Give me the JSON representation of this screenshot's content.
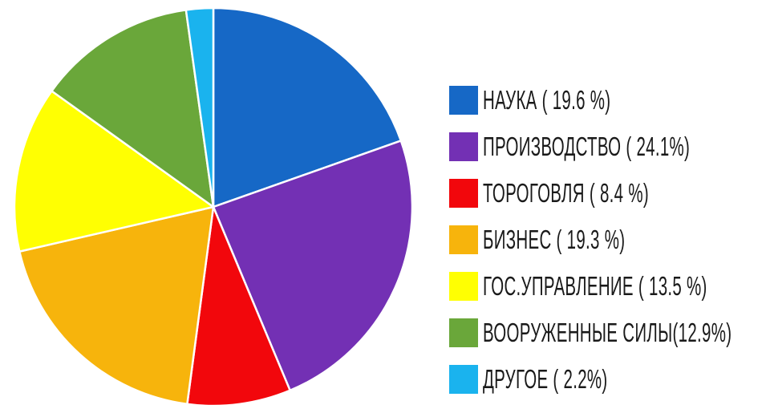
{
  "chart_data": {
    "type": "pie",
    "title": "",
    "start_angle_deg": 0,
    "direction": "clockwise",
    "slices": [
      {
        "label": "НАУКА ( 19.6 %)",
        "value": 19.6,
        "color": "#1668c6"
      },
      {
        "label": "ПРОИЗВОДСТВО ( 24.1%)",
        "value": 24.1,
        "color": "#7330b4"
      },
      {
        "label": "ТОРОГОВЛЯ (  8.4  %)",
        "value": 8.4,
        "color": "#f2070c"
      },
      {
        "label": "БИЗНЕС ( 19.3  %)",
        "value": 19.3,
        "color": "#f7b40c"
      },
      {
        "label": "ГОС.УПРАВЛЕНИЕ (  13.5  %)",
        "value": 13.5,
        "color": "#ffff02"
      },
      {
        "label": "ВООРУЖЕННЫЕ СИЛЫ(12.9%)",
        "value": 12.9,
        "color": "#6aa73a"
      },
      {
        "label": "ДРУГОЕ ( 2.2%)",
        "value": 2.2,
        "color": "#1ab3ee"
      }
    ],
    "legend_position": "right"
  }
}
